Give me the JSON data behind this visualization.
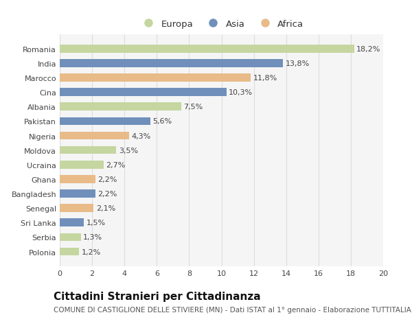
{
  "countries": [
    "Romania",
    "India",
    "Marocco",
    "Cina",
    "Albania",
    "Pakistan",
    "Nigeria",
    "Moldova",
    "Ucraina",
    "Ghana",
    "Bangladesh",
    "Senegal",
    "Sri Lanka",
    "Serbia",
    "Polonia"
  ],
  "values": [
    18.2,
    13.8,
    11.8,
    10.3,
    7.5,
    5.6,
    4.3,
    3.5,
    2.7,
    2.2,
    2.2,
    2.1,
    1.5,
    1.3,
    1.2
  ],
  "labels": [
    "18,2%",
    "13,8%",
    "11,8%",
    "10,3%",
    "7,5%",
    "5,6%",
    "4,3%",
    "3,5%",
    "2,7%",
    "2,2%",
    "2,2%",
    "2,1%",
    "1,5%",
    "1,3%",
    "1,2%"
  ],
  "continents": [
    "Europa",
    "Asia",
    "Africa",
    "Asia",
    "Europa",
    "Asia",
    "Africa",
    "Europa",
    "Europa",
    "Africa",
    "Asia",
    "Africa",
    "Asia",
    "Europa",
    "Europa"
  ],
  "colors": {
    "Europa": "#c5d6a0",
    "Asia": "#7090bb",
    "Africa": "#e8bb88"
  },
  "xlim": [
    0,
    20
  ],
  "title": "Cittadini Stranieri per Cittadinanza",
  "subtitle": "COMUNE DI CASTIGLIONE DELLE STIVIERE (MN) - Dati ISTAT al 1° gennaio - Elaborazione TUTTITALIA.IT",
  "background_color": "#ffffff",
  "plot_bg_color": "#f5f5f5",
  "grid_color": "#dddddd",
  "bar_height": 0.55,
  "label_fontsize": 8,
  "tick_fontsize": 8,
  "title_fontsize": 11,
  "subtitle_fontsize": 7.5
}
